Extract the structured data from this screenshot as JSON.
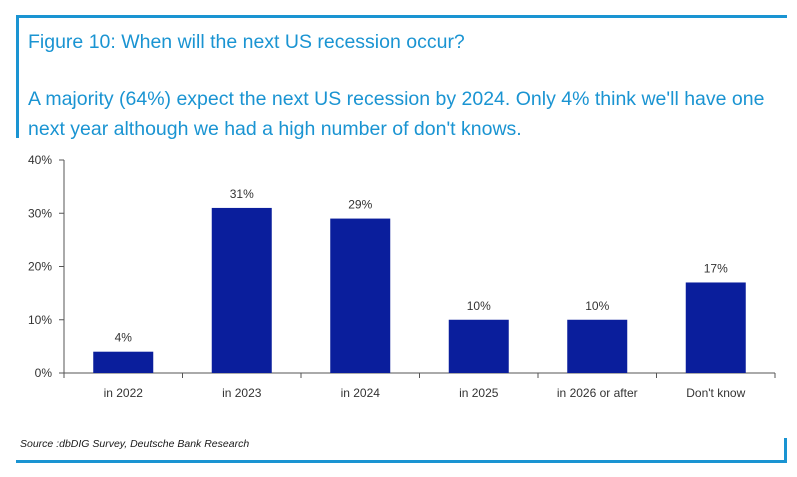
{
  "figure": {
    "title": "Figure 10: When will the next US recession occur?",
    "subtitle": "A majority (64%) expect the next US recession by 2024. Only 4% think we'll have one next year although we had a high number of don't knows.",
    "source": "Source :dbDIG Survey, Deutsche Bank Research"
  },
  "colors": {
    "accent": "#1a94d2",
    "bar": "#0a1e9c",
    "axis": "#555555",
    "text": "#333333"
  },
  "chart_data": {
    "type": "bar",
    "categories": [
      "in 2022",
      "in 2023",
      "in 2024",
      "in 2025",
      "in 2026 or after",
      "Don't know"
    ],
    "values": [
      4,
      31,
      29,
      10,
      10,
      17
    ],
    "data_labels": [
      "4%",
      "31%",
      "29%",
      "10%",
      "10%",
      "17%"
    ],
    "y_ticks": [
      0,
      10,
      20,
      30,
      40
    ],
    "y_tick_labels": [
      "0%",
      "10%",
      "20%",
      "30%",
      "40%"
    ],
    "ylim": [
      0,
      40
    ],
    "grid": false,
    "legend": "none"
  }
}
